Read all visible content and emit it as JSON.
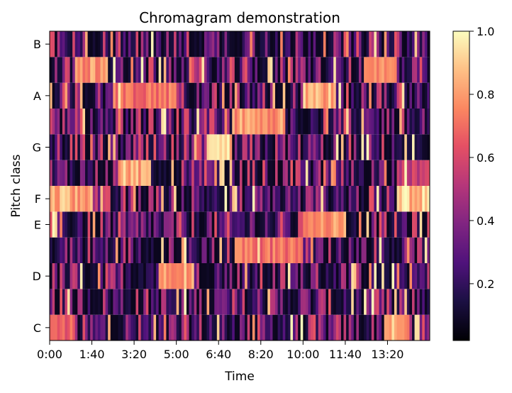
{
  "chart_data": {
    "type": "heatmap",
    "title": "Chromagram demonstration",
    "xlabel": "Time",
    "ylabel": "Pitch class",
    "x_ticks": [
      "0:00",
      "1:40",
      "3:20",
      "5:00",
      "6:40",
      "8:20",
      "10:00",
      "11:40",
      "13:20"
    ],
    "x_tick_seconds": [
      0,
      100,
      200,
      300,
      400,
      500,
      600,
      700,
      800
    ],
    "x_range_seconds": [
      0,
      900
    ],
    "rows": [
      "C",
      "C#",
      "D",
      "D#",
      "E",
      "F",
      "F#",
      "G",
      "G#",
      "A",
      "A#",
      "B"
    ],
    "y_tick_labels": [
      "C",
      "D",
      "E",
      "F",
      "G",
      "A",
      "B"
    ],
    "y_tick_rows": [
      0,
      2,
      4,
      5,
      7,
      9,
      11
    ],
    "colormap": "magma",
    "colorbar": {
      "min": 0.02,
      "max": 1.0,
      "ticks": [
        "0.2",
        "0.4",
        "0.6",
        "0.8",
        "1.0"
      ],
      "tick_values": [
        0.2,
        0.4,
        0.6,
        0.8,
        1.0
      ]
    },
    "cols": 150,
    "bright_segments": [
      {
        "row": "F",
        "t_start": 0,
        "t_end": 100,
        "value": 0.95
      },
      {
        "row": "A#",
        "t_start": 60,
        "t_end": 140,
        "value": 0.9
      },
      {
        "row": "C",
        "t_start": 0,
        "t_end": 60,
        "value": 0.75
      },
      {
        "row": "F#",
        "t_start": 160,
        "t_end": 240,
        "value": 0.95
      },
      {
        "row": "A",
        "t_start": 150,
        "t_end": 300,
        "value": 0.8
      },
      {
        "row": "D",
        "t_start": 260,
        "t_end": 340,
        "value": 0.95
      },
      {
        "row": "G",
        "t_start": 370,
        "t_end": 430,
        "value": 1.0
      },
      {
        "row": "G#",
        "t_start": 430,
        "t_end": 560,
        "value": 0.9
      },
      {
        "row": "D#",
        "t_start": 440,
        "t_end": 600,
        "value": 0.8
      },
      {
        "row": "A",
        "t_start": 600,
        "t_end": 680,
        "value": 0.95
      },
      {
        "row": "E",
        "t_start": 600,
        "t_end": 700,
        "value": 0.9
      },
      {
        "row": "A#",
        "t_start": 750,
        "t_end": 820,
        "value": 0.85
      },
      {
        "row": "C",
        "t_start": 790,
        "t_end": 850,
        "value": 0.9
      },
      {
        "row": "F",
        "t_start": 820,
        "t_end": 900,
        "value": 1.0
      },
      {
        "row": "F#",
        "t_start": 820,
        "t_end": 900,
        "value": 0.6
      }
    ]
  }
}
